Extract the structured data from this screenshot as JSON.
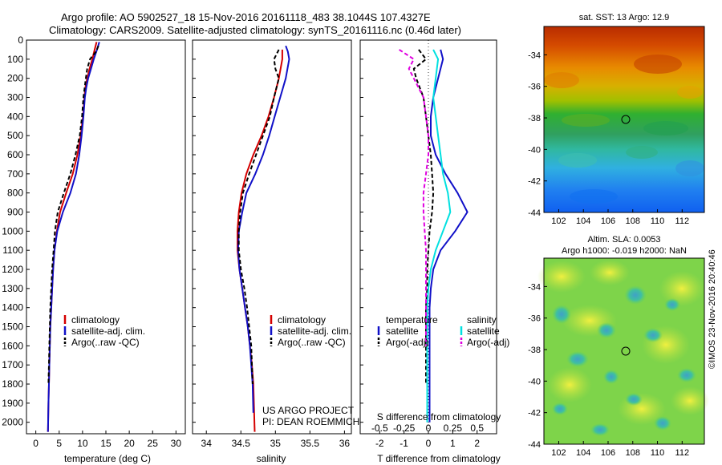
{
  "header": {
    "line1": "Argo profile: AO 5902527_18 15-Nov-2016 20161118_483 38.1044S 107.4327E",
    "line2": "Climatology: CARS2009. Satellite-adjusted climatology: synTS_20161116.nc (0.46d later)"
  },
  "watermark": "©IMOS 23-Nov-2016 20:40:46",
  "credit": {
    "line1": "US ARGO PROJECT",
    "line2": "PI: DEAN ROEMMICH"
  },
  "colors": {
    "climatology": "#d40000",
    "satellite": "#1010c8",
    "argo": "#000000",
    "salinity_satellite": "#00e0e0",
    "salinity_argo": "#e000e0"
  },
  "chart_data": [
    {
      "type": "line",
      "id": "temperature",
      "xlabel": "temperature (deg C)",
      "xlim": [
        -2,
        32
      ],
      "ylim": [
        2060,
        0
      ],
      "xticks": [
        0,
        5,
        10,
        15,
        20,
        25,
        30
      ],
      "yticks": [
        0,
        100,
        200,
        300,
        400,
        500,
        600,
        700,
        800,
        900,
        1000,
        1100,
        1200,
        1300,
        1400,
        1500,
        1600,
        1700,
        1800,
        1900,
        2000
      ],
      "legend": [
        "climatology",
        "satellite-adj. clim.",
        "Argo(..raw -QC)"
      ],
      "series": [
        {
          "name": "climatology",
          "color_key": "climatology",
          "dash": false,
          "x": [
            13.0,
            12.6,
            12.1,
            11.5,
            11.0,
            10.6,
            10.4,
            10.1,
            9.6,
            8.9,
            7.9,
            6.5,
            5.2,
            4.5,
            4.0,
            3.7,
            3.5,
            3.3,
            3.1,
            3.0,
            2.9,
            2.8,
            2.7,
            2.6
          ],
          "y": [
            10,
            50,
            100,
            150,
            200,
            250,
            300,
            400,
            500,
            600,
            700,
            800,
            900,
            1000,
            1100,
            1200,
            1300,
            1400,
            1500,
            1600,
            1700,
            1800,
            1900,
            2050
          ]
        },
        {
          "name": "satellite-adj. clim.",
          "color_key": "satellite",
          "dash": false,
          "x": [
            13.6,
            13.1,
            12.4,
            11.8,
            11.2,
            10.8,
            10.5,
            10.2,
            9.8,
            9.3,
            8.6,
            7.4,
            5.8,
            4.6,
            4.0,
            3.7,
            3.5,
            3.3,
            3.1,
            3.0,
            2.9,
            2.8,
            2.7,
            2.6
          ],
          "y": [
            10,
            50,
            100,
            150,
            200,
            250,
            300,
            400,
            500,
            600,
            700,
            800,
            900,
            1000,
            1100,
            1200,
            1300,
            1400,
            1500,
            1600,
            1700,
            1800,
            1900,
            2050
          ]
        },
        {
          "name": "Argo(..raw -QC)",
          "color_key": "argo",
          "dash": true,
          "x": [
            13.4,
            12.9,
            11.6,
            11.0,
            10.7,
            10.2,
            9.9,
            9.4,
            8.5,
            7.4,
            6.0,
            4.7,
            4.1,
            3.8,
            3.5,
            3.3,
            3.1,
            3.0,
            2.9,
            2.8,
            2.7
          ],
          "y": [
            30,
            60,
            100,
            150,
            200,
            300,
            400,
            500,
            600,
            700,
            800,
            900,
            1000,
            1100,
            1200,
            1300,
            1400,
            1500,
            1600,
            1700,
            1800
          ]
        }
      ]
    },
    {
      "type": "line",
      "id": "salinity",
      "xlabel": "salinity",
      "xlim": [
        33.8,
        36.1
      ],
      "ylim": [
        2060,
        0
      ],
      "xticks": [
        34,
        34.5,
        35,
        35.5,
        36
      ],
      "legend": [
        "climatology",
        "satellite-adj. clim.",
        "Argo(..raw -QC)"
      ],
      "series": [
        {
          "name": "climatology",
          "color_key": "climatology",
          "dash": false,
          "x": [
            35.1,
            35.1,
            35.05,
            34.98,
            34.9,
            34.8,
            34.68,
            34.58,
            34.51,
            34.47,
            34.45,
            34.45,
            34.48,
            34.52,
            34.56,
            34.6,
            34.63,
            34.66,
            34.68,
            34.7
          ],
          "y": [
            50,
            100,
            200,
            300,
            400,
            500,
            600,
            700,
            800,
            900,
            1000,
            1100,
            1200,
            1300,
            1400,
            1500,
            1600,
            1700,
            1800,
            2050
          ]
        },
        {
          "name": "satellite-adj. clim.",
          "color_key": "satellite",
          "dash": false,
          "x": [
            35.15,
            35.18,
            35.2,
            35.15,
            35.07,
            34.99,
            34.91,
            34.82,
            34.71,
            34.58,
            34.52,
            34.47,
            34.46,
            34.48,
            34.52,
            34.56,
            34.6,
            34.63,
            34.65,
            34.67,
            34.68
          ],
          "y": [
            30,
            60,
            100,
            200,
            300,
            400,
            500,
            600,
            700,
            800,
            900,
            1000,
            1100,
            1200,
            1300,
            1400,
            1500,
            1600,
            1700,
            1800,
            1950
          ]
        },
        {
          "name": "Argo(..raw -QC)",
          "color_key": "argo",
          "dash": true,
          "x": [
            35.05,
            34.98,
            35.0,
            35.05,
            34.98,
            34.92,
            34.82,
            34.72,
            34.62,
            34.53,
            34.49,
            34.47,
            34.47,
            34.5,
            34.55,
            34.59,
            34.62,
            34.65,
            34.67
          ],
          "y": [
            50,
            100,
            150,
            200,
            300,
            400,
            500,
            600,
            700,
            800,
            900,
            1000,
            1100,
            1200,
            1300,
            1400,
            1500,
            1600,
            1800
          ]
        }
      ]
    },
    {
      "type": "line",
      "id": "difference",
      "xlabel": "T difference from climatology",
      "xlabel_top": "S difference from climatology",
      "xlim": [
        -2.8,
        2.8
      ],
      "ylim": [
        2060,
        0
      ],
      "xticks": [
        -2,
        -1,
        0,
        1,
        2
      ],
      "xticks_top": [
        -0.5,
        -0.25,
        0,
        0.25,
        0.5
      ],
      "legend_temperature_header": "temperature",
      "legend_salinity_header": "salinity",
      "legend": [
        "satellite",
        "Argo(-adj)",
        "satellite",
        "Argo(-adj)"
      ],
      "series": [
        {
          "name": "satellite",
          "group": "temperature",
          "color_key": "satellite",
          "dash": false,
          "x": [
            0.5,
            0.6,
            0.4,
            0.2,
            0.1,
            0.1,
            0.3,
            0.7,
            1.2,
            1.6,
            1.1,
            0.5,
            0.2,
            0.1,
            0.05,
            0.05,
            0.05,
            0.05,
            0.05,
            0.05
          ],
          "y": [
            50,
            100,
            200,
            300,
            400,
            500,
            600,
            700,
            800,
            900,
            1000,
            1100,
            1200,
            1300,
            1400,
            1500,
            1600,
            1700,
            1800,
            2000
          ]
        },
        {
          "name": "Argo(-adj)",
          "group": "temperature",
          "color_key": "argo",
          "dash": true,
          "x": [
            -0.4,
            -0.1,
            -0.6,
            -0.5,
            -0.2,
            -0.1,
            0.0,
            0.1,
            0.15,
            0.2,
            0.15,
            0.05,
            0.0,
            -0.05,
            -0.05,
            -0.1,
            -0.1,
            -0.1,
            -0.1
          ],
          "y": [
            50,
            100,
            150,
            200,
            300,
            400,
            500,
            600,
            700,
            800,
            900,
            1000,
            1100,
            1200,
            1300,
            1400,
            1500,
            1600,
            1800
          ]
        },
        {
          "name": "satellite",
          "group": "salinity",
          "color_key": "salinity_satellite",
          "dash": false,
          "x": [
            0.2,
            0.4,
            0.3,
            0.2,
            0.3,
            0.4,
            0.5,
            0.6,
            0.8,
            0.9,
            0.6,
            0.3,
            0.1,
            0.0,
            -0.05,
            -0.05,
            -0.05,
            -0.05,
            -0.05,
            -0.05
          ],
          "y": [
            50,
            100,
            200,
            300,
            400,
            500,
            600,
            700,
            800,
            900,
            1000,
            1100,
            1200,
            1300,
            1400,
            1500,
            1600,
            1700,
            1800,
            2000
          ]
        },
        {
          "name": "Argo(-adj)",
          "group": "salinity",
          "color_key": "salinity_argo",
          "dash": true,
          "x": [
            -1.2,
            -0.6,
            -0.8,
            -0.6,
            -0.2,
            -0.1,
            0.0,
            0.0,
            -0.1,
            -0.2,
            -0.2,
            -0.15,
            -0.1,
            -0.1,
            -0.1,
            -0.1
          ],
          "y": [
            50,
            100,
            150,
            200,
            300,
            400,
            500,
            600,
            700,
            800,
            900,
            1000,
            1100,
            1200,
            1400,
            1600
          ]
        }
      ]
    },
    {
      "type": "heatmap",
      "id": "sst-map",
      "title": "sat. SST: 13 Argo: 12.9",
      "xlim": [
        100.8,
        113.8
      ],
      "ylim": [
        -44,
        -32.2
      ],
      "xticks": [
        102,
        104,
        106,
        108,
        110,
        112
      ],
      "yticks": [
        -34,
        -36,
        -38,
        -40,
        -42,
        -44
      ],
      "marker": {
        "lon": 107.43,
        "lat": -38.1
      }
    },
    {
      "type": "heatmap",
      "id": "sla-map",
      "title_line1": "Altim. SLA: 0.0053",
      "title_line2": "Argo h1000: -0.019 h2000: NaN",
      "xlim": [
        100.8,
        113.8
      ],
      "ylim": [
        -44,
        -32.2
      ],
      "xticks": [
        102,
        104,
        106,
        108,
        110,
        112
      ],
      "yticks": [
        -34,
        -36,
        -38,
        -40,
        -42,
        -44
      ],
      "marker": {
        "lon": 107.43,
        "lat": -38.1
      }
    }
  ]
}
